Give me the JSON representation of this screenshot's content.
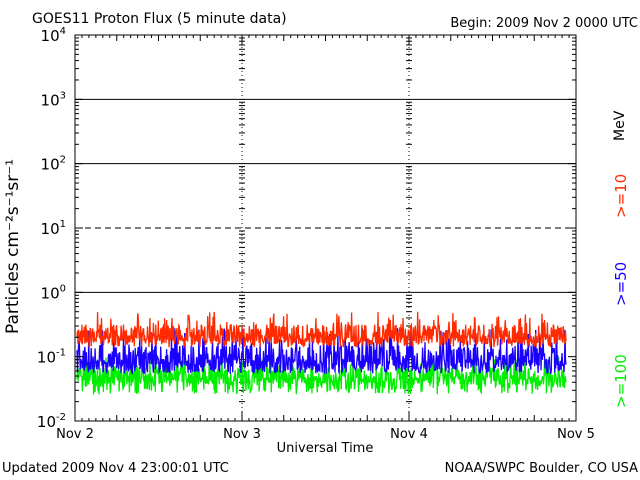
{
  "header": {
    "title": "GOES11 Proton Flux (5 minute data)",
    "begin": "Begin: 2009 Nov 2 0000 UTC"
  },
  "footer": {
    "updated": "Updated 2009 Nov  4 23:00:01 UTC",
    "source": "NOAA/SWPC Boulder, CO USA"
  },
  "legend_unit": "MeV",
  "colors": {
    "ge10": "#ff2a00",
    "ge50": "#1a00ff",
    "ge100": "#00ee00",
    "axis": "#000000"
  },
  "chart_data": {
    "type": "line",
    "title": "GOES11 Proton Flux (5 minute data)",
    "xlabel": "Universal Time",
    "ylabel": "Particles cm⁻²s⁻¹sr⁻¹",
    "y_scale": "log",
    "ylim": [
      0.01,
      10000
    ],
    "xlim": [
      "2009-11-02",
      "2009-11-05"
    ],
    "x_ticks": [
      "Nov 2",
      "Nov 3",
      "Nov 4",
      "Nov 5"
    ],
    "y_ticks": [
      {
        "value": 0.01,
        "base": "10",
        "exp": "-2"
      },
      {
        "value": 0.1,
        "base": "10",
        "exp": "-1"
      },
      {
        "value": 1,
        "base": "10",
        "exp": "0"
      },
      {
        "value": 10,
        "base": "10",
        "exp": "1"
      },
      {
        "value": 100,
        "base": "10",
        "exp": "2"
      },
      {
        "value": 1000,
        "base": "10",
        "exp": "3"
      },
      {
        "value": 10000,
        "base": "10",
        "exp": "4"
      }
    ],
    "solid_reference_lines": [
      1,
      100,
      1000
    ],
    "dashed_reference_lines": [
      10
    ],
    "grid": "dashed vertical at day boundaries",
    "legend_placement": "right, vertical",
    "series": [
      {
        "name": ">=10",
        "color": "#ff2a00",
        "typical": 0.22,
        "min": 0.14,
        "max": 0.5
      },
      {
        "name": ">=50",
        "color": "#1a00ff",
        "typical": 0.09,
        "min": 0.055,
        "max": 0.28
      },
      {
        "name": ">=100",
        "color": "#00ee00",
        "typical": 0.05,
        "min": 0.026,
        "max": 0.1
      }
    ]
  }
}
